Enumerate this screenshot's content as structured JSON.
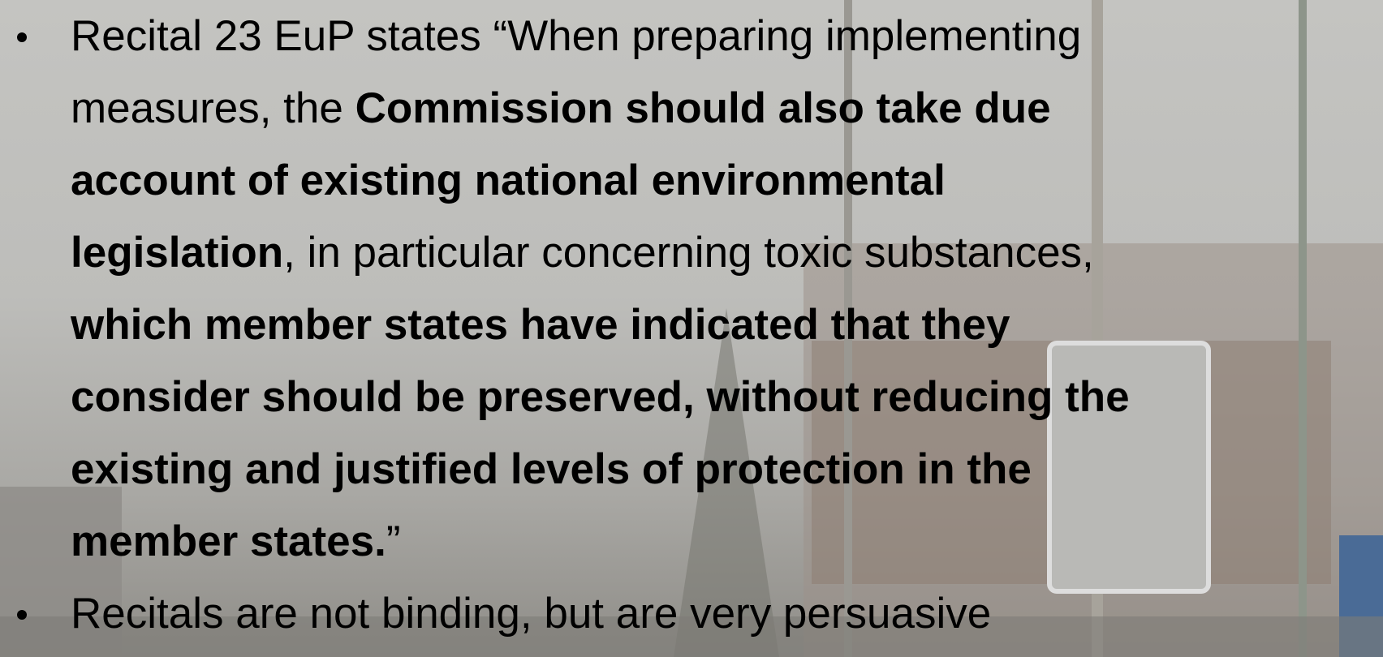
{
  "slide": {
    "bullets": [
      {
        "lines": [
          [
            {
              "text": "Recital 23 EuP states “When preparing implementing",
              "bold": false
            }
          ],
          [
            {
              "text": "measures, the ",
              "bold": false
            },
            {
              "text": "Commission should also take due",
              "bold": true
            }
          ],
          [
            {
              "text": "account of existing national environmental",
              "bold": true
            }
          ],
          [
            {
              "text": "legislation",
              "bold": true
            },
            {
              "text": ", in particular concerning toxic substances,",
              "bold": false
            }
          ],
          [
            {
              "text": "which member states have indicated that they",
              "bold": true
            }
          ],
          [
            {
              "text": "consider should be preserved, without reducing the",
              "bold": true
            }
          ],
          [
            {
              "text": "existing and justified levels of protection in the",
              "bold": true
            }
          ],
          [
            {
              "text": "member states.",
              "bold": true
            },
            {
              "text": "”",
              "bold": false
            }
          ]
        ]
      },
      {
        "lines": [
          [
            {
              "text": "Recitals are not binding, but are very persuasive",
              "bold": false
            }
          ]
        ]
      }
    ]
  }
}
